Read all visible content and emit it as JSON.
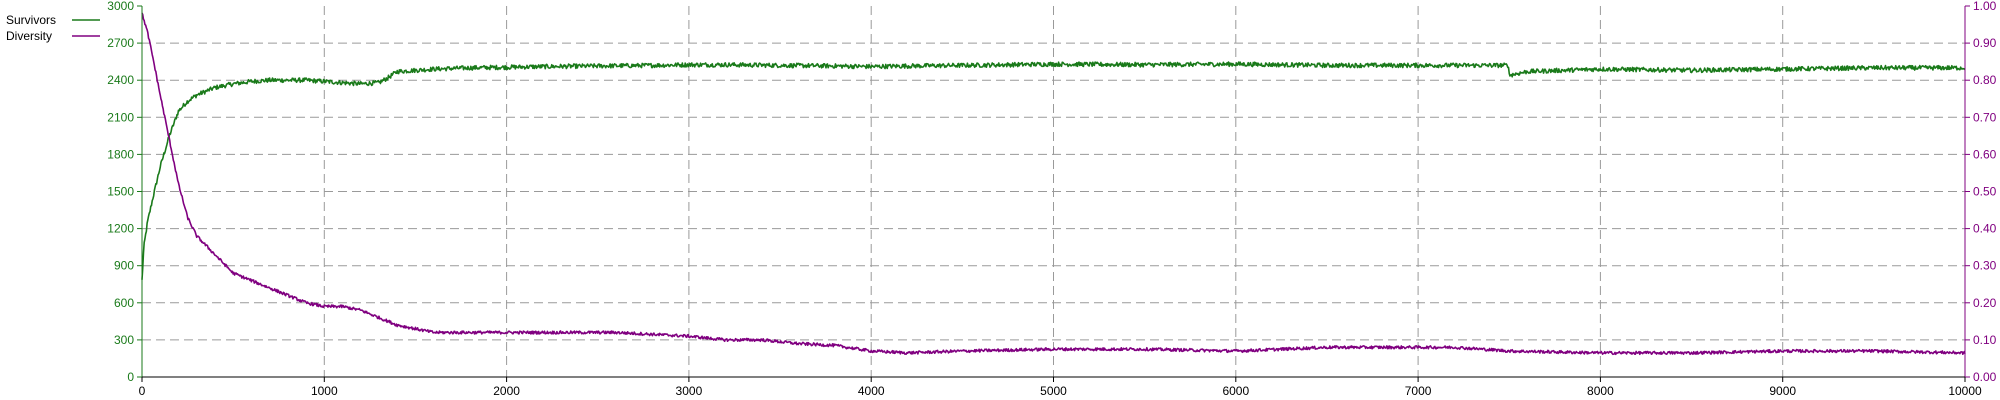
{
  "chart_data": {
    "type": "line",
    "grid": true,
    "legend_position": "top-left",
    "x": {
      "range": [
        0,
        10000
      ],
      "ticks": [
        0,
        1000,
        2000,
        3000,
        4000,
        5000,
        6000,
        7000,
        8000,
        9000,
        10000
      ],
      "tick_labels": [
        "0",
        "1000",
        "2000",
        "3000",
        "4000",
        "5000",
        "6000",
        "7000",
        "8000",
        "9000",
        "10000"
      ]
    },
    "y_left": {
      "range": [
        0,
        3000
      ],
      "ticks": [
        0,
        300,
        600,
        900,
        1200,
        1500,
        1800,
        2100,
        2400,
        2700,
        3000
      ],
      "tick_labels": [
        "0",
        "300",
        "600",
        "900",
        "1200",
        "1500",
        "1800",
        "2100",
        "2400",
        "2700",
        "3000"
      ],
      "color": "#1a7a1a"
    },
    "y_right": {
      "range": [
        0,
        1
      ],
      "ticks": [
        0,
        0.1,
        0.2,
        0.3,
        0.4,
        0.5,
        0.6,
        0.7,
        0.8,
        0.9,
        1.0
      ],
      "tick_labels": [
        "0.00",
        "0.10",
        "0.20",
        "0.30",
        "0.40",
        "0.50",
        "0.60",
        "0.70",
        "0.80",
        "0.90",
        "1.00"
      ],
      "color": "#800080"
    },
    "series": [
      {
        "name": "Survivors",
        "axis": "left",
        "color": "#1a7a1a",
        "x": [
          0,
          10,
          30,
          60,
          100,
          150,
          200,
          250,
          300,
          400,
          500,
          600,
          700,
          800,
          900,
          1000,
          1100,
          1200,
          1300,
          1350,
          1400,
          1500,
          1600,
          1800,
          2000,
          2200,
          2500,
          2800,
          3000,
          3200,
          3500,
          3800,
          4000,
          4200,
          4500,
          5000,
          5500,
          6000,
          6500,
          7000,
          7300,
          7499,
          7500,
          7600,
          8000,
          8500,
          9000,
          9500,
          10000
        ],
        "values": [
          780,
          1050,
          1250,
          1450,
          1700,
          1950,
          2150,
          2230,
          2280,
          2340,
          2370,
          2390,
          2400,
          2400,
          2400,
          2390,
          2380,
          2370,
          2380,
          2420,
          2470,
          2480,
          2490,
          2500,
          2505,
          2510,
          2515,
          2520,
          2525,
          2525,
          2520,
          2515,
          2510,
          2515,
          2520,
          2530,
          2525,
          2530,
          2520,
          2520,
          2520,
          2520,
          2440,
          2470,
          2490,
          2480,
          2490,
          2500,
          2500
        ]
      },
      {
        "name": "Diversity",
        "axis": "right",
        "color": "#800080",
        "x": [
          0,
          30,
          60,
          100,
          150,
          200,
          250,
          300,
          400,
          500,
          600,
          700,
          800,
          900,
          1000,
          1100,
          1200,
          1300,
          1400,
          1500,
          1600,
          1800,
          2000,
          2200,
          2400,
          2600,
          2800,
          3000,
          3200,
          3400,
          3600,
          3800,
          4000,
          4200,
          4500,
          5000,
          5500,
          6000,
          6500,
          7000,
          7200,
          7500,
          8000,
          8500,
          9000,
          9500,
          10000
        ],
        "values": [
          0.98,
          0.93,
          0.86,
          0.76,
          0.64,
          0.52,
          0.43,
          0.38,
          0.33,
          0.28,
          0.26,
          0.24,
          0.22,
          0.2,
          0.19,
          0.19,
          0.18,
          0.16,
          0.14,
          0.13,
          0.12,
          0.12,
          0.12,
          0.12,
          0.12,
          0.12,
          0.115,
          0.11,
          0.1,
          0.1,
          0.09,
          0.085,
          0.07,
          0.065,
          0.07,
          0.075,
          0.075,
          0.07,
          0.08,
          0.08,
          0.08,
          0.07,
          0.065,
          0.065,
          0.07,
          0.07,
          0.065
        ]
      }
    ]
  }
}
